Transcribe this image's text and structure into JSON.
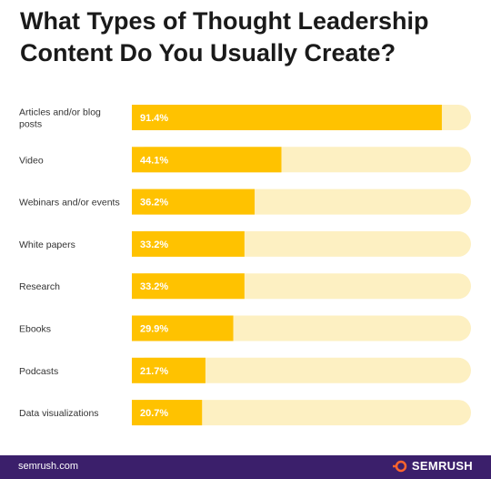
{
  "title": "What Types of Thought Leadership Content Do You Usually Create?",
  "footer": {
    "url": "semrush.com",
    "brand": "SEMRUSH"
  },
  "colors": {
    "bar": "#ffc200",
    "track": "#fdf0c2",
    "value_text": "#ffffff",
    "footer_bg": "#3b1f6b",
    "brand_accent": "#ff642d"
  },
  "chart_data": {
    "type": "bar",
    "orientation": "horizontal",
    "categories": [
      [
        "Articles and/or blog",
        "posts"
      ],
      [
        "Video"
      ],
      [
        "Webinars and/or events"
      ],
      [
        "White papers"
      ],
      [
        "Research"
      ],
      [
        "Ebooks"
      ],
      [
        "Podcasts"
      ],
      [
        "Data visualizations"
      ]
    ],
    "values": [
      91.4,
      44.1,
      36.2,
      33.2,
      33.2,
      29.9,
      21.7,
      20.7
    ],
    "value_labels": [
      "91.4%",
      "44.1%",
      "36.2%",
      "33.2%",
      "33.2%",
      "29.9%",
      "21.7%",
      "20.7%"
    ],
    "xlim": [
      0,
      100
    ],
    "unit": "%",
    "grid": false,
    "legend": "none"
  }
}
